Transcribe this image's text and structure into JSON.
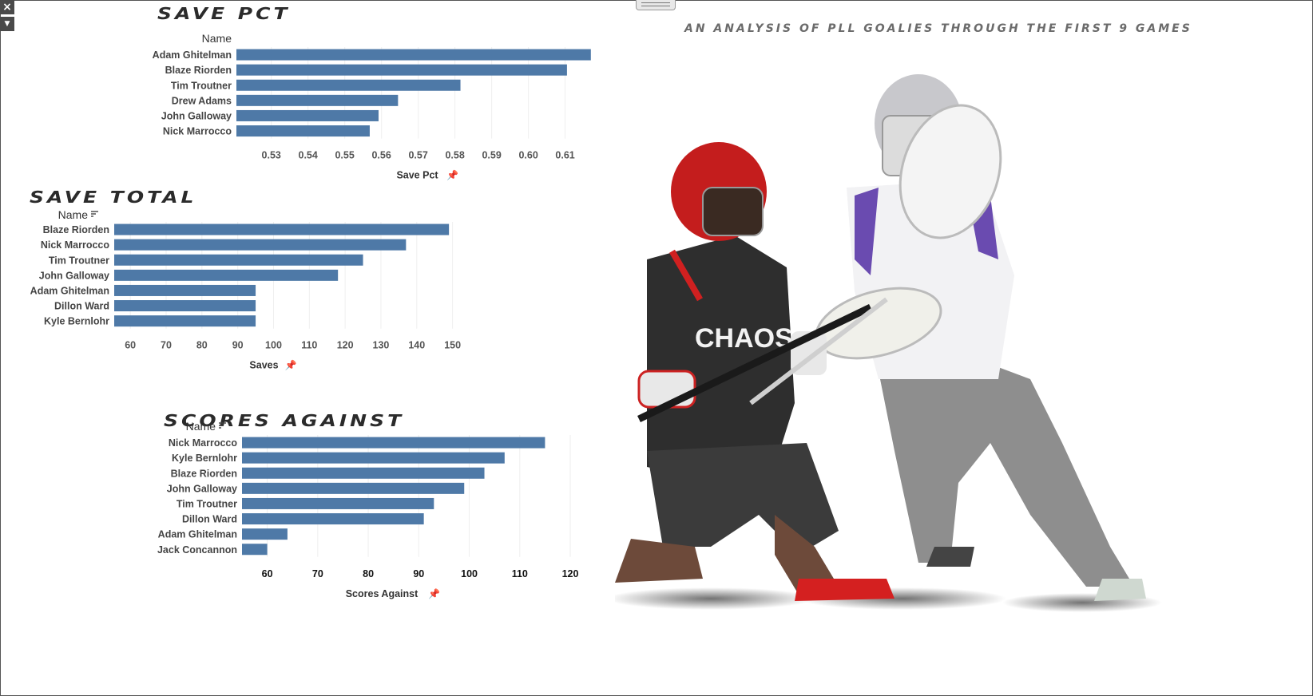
{
  "dashboard": {
    "tagline": "An analysis of PLL goalies through the first 9 games",
    "colors": {
      "bar": "#4e79a7",
      "grid": "#efefef",
      "label": "#444444"
    }
  },
  "chart_data": [
    {
      "type": "bar",
      "orientation": "horizontal",
      "title": "Save Pct",
      "row_header": "Name",
      "categories": [
        "Adam Ghitelman",
        "Blaze Riorden",
        "Tim Troutner",
        "Drew Adams",
        "John Galloway",
        "Nick Marrocco"
      ],
      "values": [
        0.617,
        0.6105,
        0.5815,
        0.5645,
        0.5592,
        0.5568
      ],
      "xlabel": "Save Pct",
      "xlim": [
        0.5205,
        0.619
      ],
      "ticks": [
        0.53,
        0.54,
        0.55,
        0.56,
        0.57,
        0.58,
        0.59,
        0.6,
        0.61
      ],
      "tick_labels": [
        "0.53",
        "0.54",
        "0.55",
        "0.56",
        "0.57",
        "0.58",
        "0.59",
        "0.60",
        "0.61"
      ],
      "sort_icon": false,
      "grid": true
    },
    {
      "type": "bar",
      "orientation": "horizontal",
      "title": "Save Total",
      "row_header": "Name",
      "categories": [
        "Blaze Riorden",
        "Nick Marrocco",
        "Tim Troutner",
        "John Galloway",
        "Adam Ghitelman",
        "Dillon Ward",
        "Kyle Bernlohr"
      ],
      "values": [
        149,
        137,
        125,
        118,
        95,
        95,
        95
      ],
      "xlabel": "Saves",
      "xlim": [
        55.5,
        157
      ],
      "ticks": [
        60,
        70,
        80,
        90,
        100,
        110,
        120,
        130,
        140,
        150
      ],
      "tick_labels": [
        "60",
        "70",
        "80",
        "90",
        "100",
        "110",
        "120",
        "130",
        "140",
        "150"
      ],
      "sort_icon": true,
      "grid": true
    },
    {
      "type": "bar",
      "orientation": "horizontal",
      "title": "Scores Against",
      "row_header": "Name",
      "categories": [
        "Nick Marrocco",
        "Kyle Bernlohr",
        "Blaze Riorden",
        "John Galloway",
        "Tim Troutner",
        "Dillon Ward",
        "Adam Ghitelman",
        "Jack Concannon"
      ],
      "values": [
        115,
        107,
        103,
        99,
        93,
        91,
        64,
        60
      ],
      "xlabel": "Scores Against",
      "xlim": [
        55,
        123
      ],
      "ticks": [
        60,
        70,
        80,
        90,
        100,
        110,
        120
      ],
      "tick_labels": [
        "60",
        "70",
        "80",
        "90",
        "100",
        "110",
        "120"
      ],
      "sort_icon": true,
      "grid": true
    }
  ],
  "photo": {
    "kind": "cutout-image",
    "left_player_jersey_text": "CHAOS"
  }
}
